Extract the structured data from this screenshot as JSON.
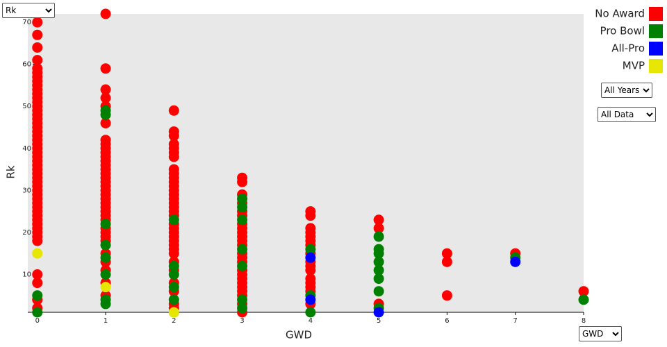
{
  "controls": {
    "y_select": {
      "options": [
        "Rk"
      ]
    },
    "year_select": {
      "options": [
        "All Years"
      ]
    },
    "data_select": {
      "options": [
        "All Data"
      ]
    },
    "x_select": {
      "options": [
        "GWD"
      ]
    }
  },
  "chart_data": {
    "type": "scatter",
    "x_label": "GWD",
    "y_label": "Rk",
    "xlim": [
      -0.14,
      8
    ],
    "ylim": [
      1,
      72
    ],
    "xticks": [
      0,
      1,
      2,
      3,
      4,
      5,
      6,
      7,
      8
    ],
    "yticks": [
      10,
      20,
      30,
      40,
      50,
      60,
      70
    ],
    "legend": "top-right",
    "series": [
      {
        "name": "No Award",
        "color": "#ff0000",
        "x": [
          0,
          0,
          0,
          0,
          0,
          0,
          0,
          0,
          0,
          0,
          0,
          0,
          0,
          0,
          0,
          0,
          0,
          0,
          0,
          0,
          0,
          0,
          0,
          0,
          0,
          0,
          0,
          0,
          0,
          0,
          0,
          0,
          0,
          0,
          0,
          0,
          0,
          0,
          0,
          0,
          0,
          0,
          0,
          0,
          0,
          0,
          0,
          0,
          0,
          0,
          1,
          1,
          1,
          1,
          1,
          1,
          1,
          1,
          1,
          1,
          1,
          1,
          1,
          1,
          1,
          1,
          1,
          1,
          1,
          1,
          1,
          1,
          1,
          1,
          1,
          1,
          1,
          1,
          1,
          1,
          1,
          1,
          1,
          1,
          1,
          2,
          2,
          2,
          2,
          2,
          2,
          2,
          2,
          2,
          2,
          2,
          2,
          2,
          2,
          2,
          2,
          2,
          2,
          2,
          2,
          2,
          2,
          2,
          2,
          2,
          2,
          2,
          2,
          2,
          2,
          2,
          2,
          2,
          3,
          3,
          3,
          3,
          3,
          3,
          3,
          3,
          3,
          3,
          3,
          3,
          3,
          3,
          3,
          3,
          3,
          3,
          3,
          3,
          3,
          3,
          3,
          3,
          4,
          4,
          4,
          4,
          4,
          4,
          4,
          4,
          4,
          4,
          4,
          4,
          4,
          4,
          4,
          4,
          5,
          5,
          5,
          6,
          6,
          6,
          7,
          8
        ],
        "values": [
          2,
          4,
          8,
          10,
          18,
          19,
          20,
          21,
          22,
          23,
          24,
          25,
          26,
          27,
          28,
          29,
          30,
          31,
          32,
          33,
          34,
          35,
          36,
          37,
          38,
          39,
          40,
          41,
          42,
          43,
          44,
          45,
          46,
          47,
          48,
          49,
          50,
          51,
          52,
          53,
          54,
          55,
          56,
          57,
          58,
          59,
          61,
          64,
          67,
          70,
          5,
          8,
          11,
          13,
          15,
          18,
          19,
          20,
          21,
          23,
          24,
          25,
          26,
          27,
          28,
          29,
          30,
          31,
          32,
          33,
          34,
          35,
          36,
          37,
          38,
          39,
          40,
          41,
          42,
          46,
          50,
          52,
          54,
          59,
          72,
          2,
          3,
          6,
          8,
          11,
          13,
          15,
          16,
          17,
          18,
          19,
          20,
          21,
          22,
          24,
          25,
          26,
          27,
          28,
          29,
          30,
          31,
          32,
          33,
          34,
          35,
          38,
          39,
          40,
          41,
          43,
          44,
          49,
          1,
          3,
          5,
          6,
          7,
          8,
          9,
          10,
          11,
          13,
          14,
          15,
          17,
          18,
          19,
          20,
          21,
          22,
          24,
          25,
          27,
          29,
          32,
          33,
          3,
          6,
          7,
          8,
          9,
          11,
          12,
          13,
          15,
          17,
          18,
          19,
          20,
          21,
          24,
          25,
          3,
          21,
          23,
          5,
          13,
          15,
          15,
          6
        ]
      },
      {
        "name": "Pro Bowl",
        "color": "#008000",
        "x": [
          0,
          0,
          1,
          1,
          1,
          1,
          1,
          1,
          1,
          1,
          2,
          2,
          2,
          2,
          2,
          2,
          3,
          3,
          3,
          3,
          3,
          3,
          3,
          4,
          4,
          4,
          5,
          5,
          5,
          5,
          5,
          5,
          5,
          5,
          7,
          8
        ],
        "values": [
          1,
          5,
          3,
          4,
          10,
          14,
          17,
          22,
          48,
          49,
          1,
          4,
          7,
          10,
          12,
          23,
          2,
          4,
          12,
          16,
          23,
          26,
          28,
          1,
          5,
          16,
          2,
          6,
          9,
          11,
          13,
          15,
          16,
          19,
          14,
          4
        ]
      },
      {
        "name": "All-Pro",
        "color": "#0000ff",
        "x": [
          4,
          4,
          5,
          7
        ],
        "values": [
          4,
          14,
          1,
          13
        ]
      },
      {
        "name": "MVP",
        "color": "#e6e600",
        "x": [
          0,
          1,
          2
        ],
        "values": [
          15,
          7,
          1
        ]
      }
    ]
  }
}
